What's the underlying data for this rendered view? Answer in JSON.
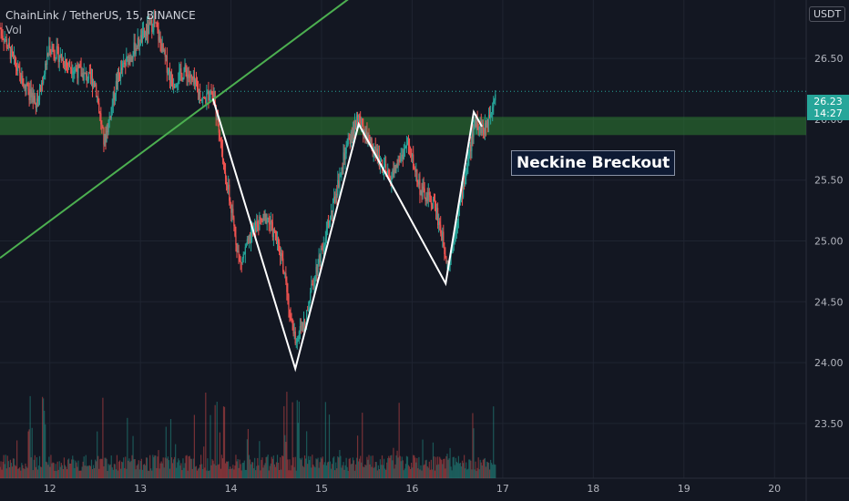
{
  "header": {
    "symbol_line": "ChainLink / TetherUS, 15, BINANCE",
    "volume_label": "Vol"
  },
  "currency": "USDT",
  "price_tag": {
    "price": "26.23",
    "countdown": "14:27"
  },
  "annotation": {
    "text": "Neckine Breckout"
  },
  "colors": {
    "background": "#131722",
    "up": "#26a69a",
    "down": "#ef5350",
    "trendline": "#4caf50",
    "zone": "#2e7d32",
    "pattern": "#ffffff"
  },
  "chart_data": {
    "type": "candlestick",
    "x_ticks": [
      "12",
      "13",
      "14",
      "15",
      "16",
      "17",
      "18",
      "19",
      "20"
    ],
    "y_ticks": [
      "26.50",
      "26.00",
      "25.50",
      "25.00",
      "24.50",
      "24.00",
      "23.50"
    ],
    "ylim": [
      23.05,
      26.98
    ],
    "xlim": [
      11.45,
      20.35
    ],
    "last_price": 26.23,
    "neckline_zone": [
      25.87,
      26.02
    ],
    "trendline": [
      {
        "x": 11.45,
        "y": 24.86
      },
      {
        "x": 15.59,
        "y": 27.15
      }
    ],
    "pattern_path": [
      {
        "x": 13.8,
        "y": 26.17
      },
      {
        "x": 14.71,
        "y": 23.95
      },
      {
        "x": 15.41,
        "y": 25.96
      },
      {
        "x": 16.37,
        "y": 24.65
      },
      {
        "x": 16.68,
        "y": 26.06
      },
      {
        "x": 16.77,
        "y": 25.94
      }
    ],
    "price_path": [
      {
        "x": 11.45,
        "y": 26.75
      },
      {
        "x": 11.7,
        "y": 26.3
      },
      {
        "x": 11.85,
        "y": 26.1
      },
      {
        "x": 12.0,
        "y": 26.6
      },
      {
        "x": 12.2,
        "y": 26.45
      },
      {
        "x": 12.5,
        "y": 26.3
      },
      {
        "x": 12.6,
        "y": 25.8
      },
      {
        "x": 12.75,
        "y": 26.35
      },
      {
        "x": 12.95,
        "y": 26.6
      },
      {
        "x": 13.15,
        "y": 26.8
      },
      {
        "x": 13.35,
        "y": 26.3
      },
      {
        "x": 13.5,
        "y": 26.4
      },
      {
        "x": 13.7,
        "y": 26.15
      },
      {
        "x": 13.8,
        "y": 26.25
      },
      {
        "x": 13.95,
        "y": 25.5
      },
      {
        "x": 14.1,
        "y": 24.8
      },
      {
        "x": 14.25,
        "y": 25.1
      },
      {
        "x": 14.4,
        "y": 25.2
      },
      {
        "x": 14.55,
        "y": 24.9
      },
      {
        "x": 14.7,
        "y": 24.2
      },
      {
        "x": 14.8,
        "y": 24.3
      },
      {
        "x": 14.95,
        "y": 24.8
      },
      {
        "x": 15.1,
        "y": 25.2
      },
      {
        "x": 15.25,
        "y": 25.7
      },
      {
        "x": 15.4,
        "y": 26.0
      },
      {
        "x": 15.55,
        "y": 25.8
      },
      {
        "x": 15.75,
        "y": 25.5
      },
      {
        "x": 15.95,
        "y": 25.8
      },
      {
        "x": 16.1,
        "y": 25.4
      },
      {
        "x": 16.25,
        "y": 25.3
      },
      {
        "x": 16.4,
        "y": 24.8
      },
      {
        "x": 16.5,
        "y": 25.2
      },
      {
        "x": 16.6,
        "y": 25.6
      },
      {
        "x": 16.7,
        "y": 26.0
      },
      {
        "x": 16.8,
        "y": 25.9
      },
      {
        "x": 16.92,
        "y": 26.23
      }
    ]
  }
}
